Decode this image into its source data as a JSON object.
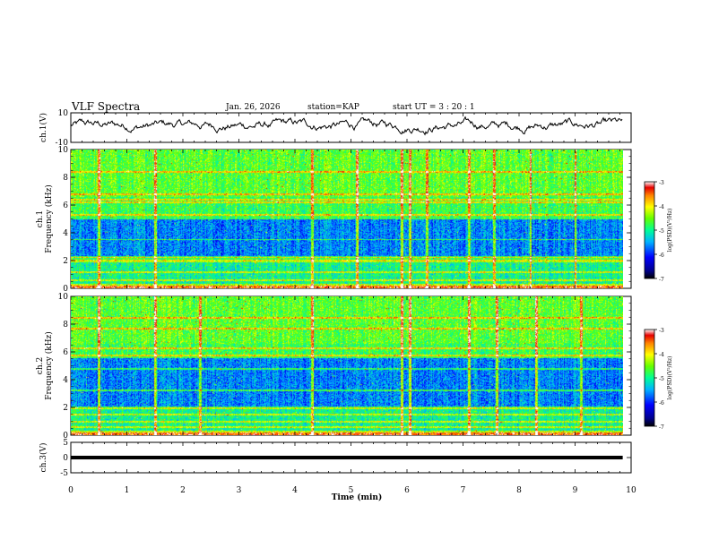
{
  "chart_data": {
    "type": "heatmap",
    "title": "VLF Spectra",
    "date": "Jan. 26, 2026",
    "station": "station=KAP",
    "start_ut": "start UT =  3 : 20 : 1",
    "xlabel": "Time (min)",
    "xlim": [
      0,
      10
    ],
    "xticks": [
      "0",
      "1",
      "2",
      "3",
      "4",
      "5",
      "6",
      "7",
      "8",
      "9",
      "10"
    ],
    "data_end_min": 9.85,
    "panels": [
      {
        "id": "ch1-voltage",
        "type": "line",
        "ylabel": "ch.1(V)",
        "ylim": [
          -10,
          10
        ],
        "yticks": [
          "10",
          "-10"
        ],
        "series_mean_v": 1.5,
        "series_range_v": [
          -8,
          10
        ]
      },
      {
        "id": "ch1-spectrogram",
        "type": "heatmap",
        "ylabel": "ch.1 Frequency (kHz)",
        "ylim": [
          0,
          10
        ],
        "yticks": [
          "0",
          "2",
          "4",
          "6",
          "8",
          "10"
        ],
        "colorbar": {
          "label": "log(PSD)(V²/Hz)",
          "range": [
            -7,
            -3
          ],
          "ticks": [
            "-3",
            "-4",
            "-5",
            "-6",
            "-7"
          ]
        },
        "quiet_bands_khz": [
          [
            2.3,
            3.5
          ],
          [
            3.6,
            5.0
          ]
        ],
        "harmonic_lines_khz": [
          0.3,
          0.6,
          1.2,
          2.0,
          2.3,
          5.3,
          6.2,
          6.4,
          6.8,
          8.4
        ],
        "sferic_times_min": [
          0.5,
          1.5,
          4.3,
          5.1,
          5.9,
          6.05,
          6.35,
          7.1,
          7.55,
          8.2,
          9.0
        ]
      },
      {
        "id": "ch2-spectrogram",
        "type": "heatmap",
        "ylabel": "ch.2 Frequency (kHz)",
        "ylim": [
          0,
          10
        ],
        "yticks": [
          "0",
          "2",
          "4",
          "6",
          "8",
          "10"
        ],
        "colorbar": {
          "label": "log(PSD)(V²/Hz)",
          "range": [
            -7,
            -3
          ],
          "ticks": [
            "-3",
            "-4",
            "-5",
            "-6",
            "-7"
          ]
        },
        "quiet_bands_khz": [
          [
            2.0,
            3.2
          ],
          [
            3.3,
            5.6
          ]
        ],
        "harmonic_lines_khz": [
          0.3,
          0.6,
          1.0,
          1.5,
          2.0,
          4.8,
          5.8,
          6.3,
          7.7,
          8.5
        ],
        "sferic_times_min": [
          0.5,
          1.5,
          2.3,
          4.3,
          5.9,
          6.05,
          7.1,
          7.6,
          8.3,
          9.1
        ]
      },
      {
        "id": "ch3-voltage",
        "type": "line",
        "ylabel": "ch.3(V)",
        "ylim": [
          -5,
          5
        ],
        "yticks": [
          "5",
          "0",
          "-5"
        ],
        "series_value_v": 0.0,
        "series_band_v": [
          -0.6,
          0.6
        ]
      }
    ]
  }
}
